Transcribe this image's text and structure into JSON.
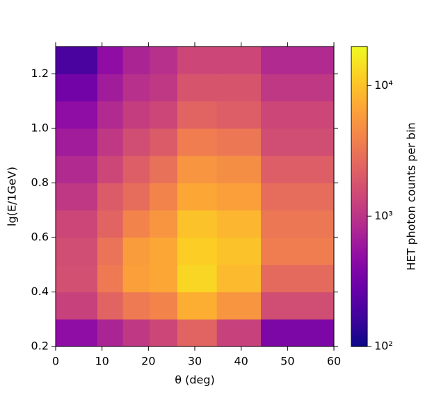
{
  "chart_data": {
    "type": "heatmap",
    "xlabel": "θ (deg)",
    "ylabel": "lg(E/1GeV)",
    "xbins": [
      0,
      9,
      14.5,
      20.25,
      26.25,
      34.75,
      44.25,
      60
    ],
    "ybins": [
      0.2,
      0.3,
      0.4,
      0.5,
      0.6,
      0.7,
      0.8,
      0.9,
      1.0,
      1.1,
      1.2,
      1.3
    ],
    "values": [
      [
        490,
        750,
        1080,
        1410,
        2400,
        1270,
        380
      ],
      [
        1270,
        2400,
        3480,
        4070,
        7690,
        5310,
        1570
      ],
      [
        1660,
        3480,
        6220,
        6920,
        13060,
        9020,
        2670
      ],
      [
        1570,
        3130,
        5900,
        6920,
        11750,
        10020,
        3660
      ],
      [
        1410,
        2400,
        4070,
        5310,
        10020,
        8550,
        3300
      ],
      [
        1080,
        2050,
        2810,
        4070,
        6920,
        6220,
        2810
      ],
      [
        830,
        1410,
        2160,
        2970,
        5310,
        4780,
        2160
      ],
      [
        640,
        1080,
        1570,
        2050,
        3660,
        3300,
        1570
      ],
      [
        490,
        830,
        1210,
        1410,
        2400,
        2160,
        1410
      ],
      [
        320,
        640,
        930,
        1080,
        1840,
        1840,
        1080
      ],
      [
        190,
        490,
        750,
        930,
        1410,
        1410,
        830
      ]
    ],
    "xlim": [
      0,
      60
    ],
    "xticks": [
      0,
      10,
      20,
      30,
      40,
      50,
      60
    ],
    "ylim": [
      0.2,
      1.3
    ],
    "yticks": [
      0.2,
      0.4,
      0.6,
      0.8,
      {
        "value": 1.0,
        "label": "1.0"
      },
      1.2
    ],
    "colormap": "plasma",
    "colorbar": {
      "label": "HET photon counts per bin",
      "log": true,
      "lim": [
        100,
        20000
      ],
      "ticks": [
        {
          "value": 100,
          "label": "10²"
        },
        {
          "value": 1000,
          "label": "10³"
        },
        {
          "value": 10000,
          "label": "10⁴"
        }
      ]
    }
  }
}
